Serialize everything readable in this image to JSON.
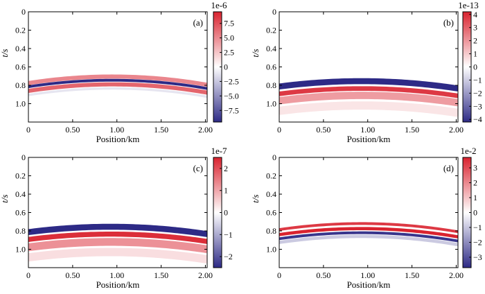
{
  "figure": {
    "colors": {
      "negative": "#2d2a86",
      "neutral": "#ffffff",
      "positive": "#d9232f",
      "frame": "#000000"
    }
  },
  "chart_data": [
    {
      "type": "heatmap",
      "panel": "(a)",
      "xlabel": "Position/km",
      "ylabel": "t/s",
      "xlim": [
        0,
        2.02
      ],
      "ylim": [
        1.2,
        0
      ],
      "xticks": [
        0,
        0.5,
        1.0,
        1.5,
        2.0
      ],
      "xtick_labels": [
        "0",
        "0.50",
        "1.00",
        "1.50",
        "2.00"
      ],
      "yticks": [
        0,
        0.2,
        0.4,
        0.6,
        0.8,
        1.0
      ],
      "ytick_labels": [
        "0",
        "0.2",
        "0.4",
        "0.6",
        "0.8",
        "1.0"
      ],
      "colorbar": {
        "exponent": "1e-6",
        "range": [
          -9.5,
          9.5
        ],
        "ticks": [
          7.5,
          5.0,
          2.5,
          0,
          -2.5,
          -5.0,
          -7.5
        ],
        "tick_labels": [
          "7.5",
          "5.0",
          "2.5",
          "0",
          "−2.5",
          "−5.0",
          "−7.5"
        ]
      },
      "event": {
        "apex_x": 0.95,
        "apex_t": 0.72,
        "end_t": 0.81
      },
      "layers": [
        {
          "offset": -0.015,
          "width": 0.045,
          "polarity": 0.55
        },
        {
          "offset": 0.025,
          "width": 0.03,
          "polarity": -1.0
        },
        {
          "offset": 0.07,
          "width": 0.045,
          "polarity": 0.7
        },
        {
          "offset": 0.115,
          "width": 0.025,
          "polarity": -0.12
        }
      ]
    },
    {
      "type": "heatmap",
      "panel": "(b)",
      "xlabel": "Position/km",
      "ylabel": "t/s",
      "xlim": [
        0,
        2.02
      ],
      "ylim": [
        1.2,
        0
      ],
      "xticks": [
        0,
        0.5,
        1.0,
        1.5,
        2.0
      ],
      "xtick_labels": [
        "0",
        "0.50",
        "1.00",
        "1.50",
        "2.00"
      ],
      "yticks": [
        0,
        0.2,
        0.4,
        0.6,
        0.8,
        1.0
      ],
      "ytick_labels": [
        "0",
        "0.2",
        "0.4",
        "0.6",
        "0.8",
        "1.0"
      ],
      "colorbar": {
        "exponent": "1e-13",
        "range": [
          -4.2,
          4.2
        ],
        "ticks": [
          4,
          3,
          2,
          1,
          0,
          -1,
          -2,
          -3,
          -4
        ],
        "tick_labels": [
          "4",
          "3",
          "2",
          "1",
          "0",
          "−1",
          "−2",
          "−3",
          "−4"
        ]
      },
      "event": {
        "apex_x": 0.93,
        "apex_t": 0.72,
        "end_t": 0.8
      },
      "layers": [
        {
          "offset": 0.035,
          "width": 0.065,
          "polarity": -1.0
        },
        {
          "offset": 0.115,
          "width": 0.05,
          "polarity": 0.9
        },
        {
          "offset": 0.19,
          "width": 0.08,
          "polarity": 0.45
        },
        {
          "offset": 0.3,
          "width": 0.09,
          "polarity": 0.12
        }
      ]
    },
    {
      "type": "heatmap",
      "panel": "(c)",
      "xlabel": "Position/km",
      "ylabel": "t/s",
      "xlim": [
        0,
        2.02
      ],
      "ylim": [
        1.2,
        0
      ],
      "xticks": [
        0,
        0.5,
        1.0,
        1.5,
        2.0
      ],
      "xtick_labels": [
        "0",
        "0.50",
        "1.00",
        "1.50",
        "2.00"
      ],
      "yticks": [
        0,
        0.2,
        0.4,
        0.6,
        0.8,
        1.0
      ],
      "ytick_labels": [
        "0",
        "0.2",
        "0.4",
        "0.6",
        "0.8",
        "1.0"
      ],
      "colorbar": {
        "exponent": "1e-7",
        "range": [
          -2.5,
          2.5
        ],
        "ticks": [
          2,
          1,
          0,
          -1,
          -2
        ],
        "tick_labels": [
          "2",
          "1",
          "0",
          "−1",
          "−2"
        ]
      },
      "event": {
        "apex_x": 0.93,
        "apex_t": 0.72,
        "end_t": 0.8
      },
      "layers": [
        {
          "offset": 0.035,
          "width": 0.065,
          "polarity": -1.0
        },
        {
          "offset": 0.115,
          "width": 0.055,
          "polarity": 0.95
        },
        {
          "offset": 0.2,
          "width": 0.085,
          "polarity": 0.5
        },
        {
          "offset": 0.31,
          "width": 0.09,
          "polarity": 0.15
        }
      ]
    },
    {
      "type": "heatmap",
      "panel": "(d)",
      "xlabel": "Position/km",
      "ylabel": "t/s",
      "xlim": [
        0,
        2.02
      ],
      "ylim": [
        1.2,
        0
      ],
      "xticks": [
        0,
        0.5,
        1.0,
        1.5,
        2.0
      ],
      "xtick_labels": [
        "0",
        "0.50",
        "1.00",
        "1.50",
        "2.00"
      ],
      "yticks": [
        0,
        0.2,
        0.4,
        0.6,
        0.8,
        1.0
      ],
      "ytick_labels": [
        "0",
        "0.2",
        "0.4",
        "0.6",
        "0.8",
        "1.0"
      ],
      "colorbar": {
        "exponent": "1e-2",
        "range": [
          -3.7,
          3.7
        ],
        "ticks": [
          3,
          2,
          1,
          0,
          -1,
          -2,
          -3
        ],
        "tick_labels": [
          "3",
          "2",
          "1",
          "0",
          "−1",
          "−2",
          "−3"
        ]
      },
      "event": {
        "apex_x": 0.93,
        "apex_t": 0.72,
        "end_t": 0.81
      },
      "layers": [
        {
          "offset": 0.0,
          "width": 0.03,
          "polarity": 0.9
        },
        {
          "offset": 0.055,
          "width": 0.035,
          "polarity": 1.0
        },
        {
          "offset": 0.1,
          "width": 0.03,
          "polarity": -0.95
        },
        {
          "offset": 0.14,
          "width": 0.035,
          "polarity": -0.25
        }
      ]
    }
  ]
}
